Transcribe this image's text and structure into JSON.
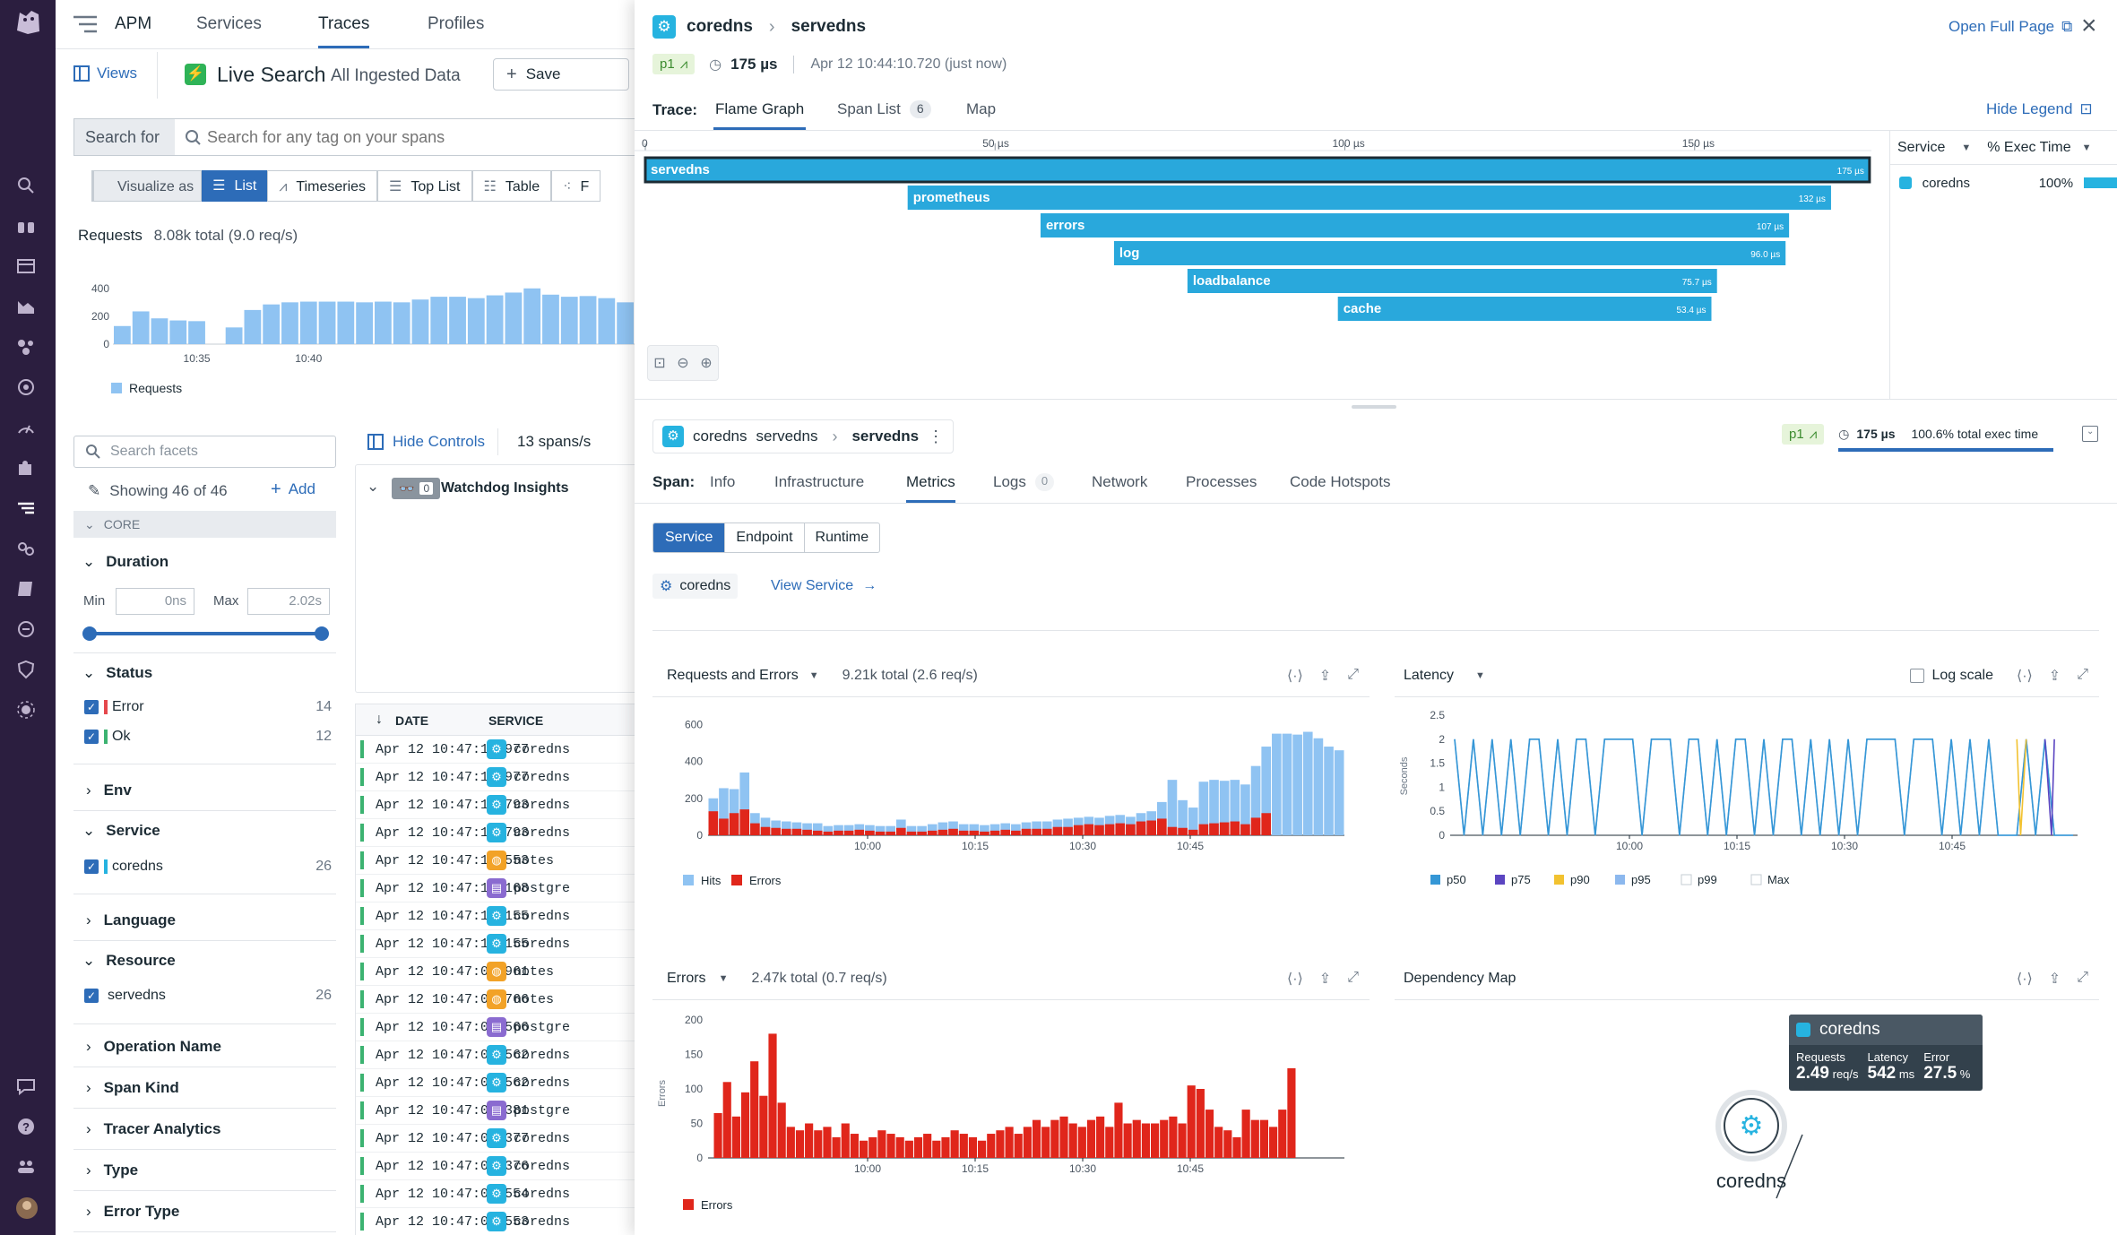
{
  "topnav": {
    "product": "APM",
    "tabs": [
      "Services",
      "Traces",
      "Profiles"
    ]
  },
  "toolbar": {
    "views": "Views",
    "live_search": "Live Search",
    "scope": "All Ingested Data",
    "save": "Save"
  },
  "search": {
    "prefix": "Search for",
    "placeholder": "Search for any tag on your spans"
  },
  "visualize": {
    "label": "Visualize as",
    "options": [
      "List",
      "Timeseries",
      "Top List",
      "Table",
      "F"
    ]
  },
  "requests": {
    "label": "Requests",
    "total": "8.08k total (9.0 req/s)",
    "yticks": [
      "400",
      "200",
      "0"
    ],
    "xticks": [
      "10:35",
      "10:40"
    ],
    "legend": "Requests"
  },
  "facets": {
    "search_placeholder": "Search facets",
    "showing": "Showing 46 of 46",
    "add": "Add",
    "core": "CORE",
    "duration": {
      "title": "Duration",
      "min_label": "Min",
      "min": "0ns",
      "max_label": "Max",
      "max": "2.02s"
    },
    "status": {
      "title": "Status",
      "items": [
        {
          "label": "Error",
          "count": "14",
          "color": "#e5484d"
        },
        {
          "label": "Ok",
          "count": "12",
          "color": "#3cb371"
        }
      ]
    },
    "env": "Env",
    "service": {
      "title": "Service",
      "item": "coredns",
      "count": "26"
    },
    "language": "Language",
    "resource": {
      "title": "Resource",
      "item": "servedns",
      "count": "26"
    },
    "collapsed": [
      "Operation Name",
      "Span Kind",
      "Tracer Analytics",
      "Type",
      "Error Type"
    ]
  },
  "controls": {
    "hide": "Hide Controls",
    "rate": "13 spans/s"
  },
  "watchdog": {
    "title": "Watchdog Insights",
    "count": "0"
  },
  "table": {
    "headers": [
      "DATE",
      "SERVICE"
    ],
    "rows": [
      {
        "date": "Apr 12 10:47:10.977",
        "service": "coredns",
        "kind": "coredns"
      },
      {
        "date": "Apr 12 10:47:10.977",
        "service": "coredns",
        "kind": "coredns"
      },
      {
        "date": "Apr 12 10:47:10.793",
        "service": "coredns",
        "kind": "coredns"
      },
      {
        "date": "Apr 12 10:47:10.793",
        "service": "coredns",
        "kind": "coredns"
      },
      {
        "date": "Apr 12 10:47:10.553",
        "service": "notes",
        "kind": "notes"
      },
      {
        "date": "Apr 12 10:47:10.168",
        "service": "postgre",
        "kind": "postgres"
      },
      {
        "date": "Apr 12 10:47:10.155",
        "service": "coredns",
        "kind": "coredns"
      },
      {
        "date": "Apr 12 10:47:10.155",
        "service": "coredns",
        "kind": "coredns"
      },
      {
        "date": "Apr 12 10:47:09.961",
        "service": "notes",
        "kind": "notes"
      },
      {
        "date": "Apr 12 10:47:09.766",
        "service": "notes",
        "kind": "notes"
      },
      {
        "date": "Apr 12 10:47:09.566",
        "service": "postgre",
        "kind": "postgres"
      },
      {
        "date": "Apr 12 10:47:09.562",
        "service": "coredns",
        "kind": "coredns"
      },
      {
        "date": "Apr 12 10:47:09.562",
        "service": "coredns",
        "kind": "coredns"
      },
      {
        "date": "Apr 12 10:47:09.381",
        "service": "postgre",
        "kind": "postgres"
      },
      {
        "date": "Apr 12 10:47:09.377",
        "service": "coredns",
        "kind": "coredns"
      },
      {
        "date": "Apr 12 10:47:09.376",
        "service": "coredns",
        "kind": "coredns"
      },
      {
        "date": "Apr 12 10:47:08.554",
        "service": "coredns",
        "kind": "coredns"
      },
      {
        "date": "Apr 12 10:47:08.553",
        "service": "coredns",
        "kind": "coredns"
      }
    ]
  },
  "trace": {
    "service": "coredns",
    "operation": "servedns",
    "priority": "p1",
    "duration": "175 µs",
    "timestamp": "Apr 12 10:44:10.720 (just now)",
    "open_full": "Open Full Page",
    "label": "Trace:",
    "tabs": [
      "Flame Graph",
      "Span List",
      "Map"
    ],
    "span_count": "6",
    "hide_legend": "Hide Legend",
    "axis": [
      "0",
      "50 µs",
      "100 µs",
      "150 µs"
    ],
    "legend": {
      "col_service": "Service",
      "col_exec": "% Exec Time",
      "service": "coredns",
      "pct": "100%"
    }
  },
  "flame": [
    {
      "name": "servedns",
      "dur": "175 µs",
      "start": 0,
      "end": 175
    },
    {
      "name": "prometheus",
      "dur": "132 µs",
      "start": 37.5,
      "end": 169.5
    },
    {
      "name": "errors",
      "dur": "107 µs",
      "start": 56.5,
      "end": 163.5
    },
    {
      "name": "log",
      "dur": "96.0 µs",
      "start": 67,
      "end": 163
    },
    {
      "name": "loadbalance",
      "dur": "75.7 µs",
      "start": 77.5,
      "end": 153.2
    },
    {
      "name": "cache",
      "dur": "53.4 µs",
      "start": 99,
      "end": 152.4
    }
  ],
  "span": {
    "service": "coredns",
    "resource": "servedns",
    "operation": "servedns",
    "priority": "p1",
    "duration": "175 µs",
    "exec": "100.6% total exec time",
    "label": "Span:",
    "tabs": [
      "Info",
      "Infrastructure",
      "Metrics",
      "Logs",
      "Network",
      "Processes",
      "Code Hotspots"
    ],
    "logs_count": "0",
    "subtabs": [
      "Service",
      "Endpoint",
      "Runtime"
    ],
    "service_chip": "coredns",
    "view_service": "View Service"
  },
  "panels": {
    "req_errors": {
      "title": "Requests and Errors",
      "total": "9.21k total (2.6 req/s)"
    },
    "latency": {
      "title": "Latency",
      "log_scale": "Log scale"
    },
    "errors": {
      "title": "Errors",
      "total": "2.47k total (0.7 req/s)"
    },
    "depmap": {
      "title": "Dependency Map",
      "node": "coredns",
      "requests_label": "Requests",
      "requests": "2.49",
      "requests_unit": "req/s",
      "latency_label": "Latency",
      "latency": "542",
      "latency_unit": "ms",
      "error_label": "Error",
      "error": "27.5",
      "error_unit": "%"
    }
  },
  "chart_data": [
    {
      "type": "bar",
      "title": "Requests",
      "ylim": [
        0,
        450
      ],
      "x_ticks": [
        "10:35",
        "10:40"
      ],
      "series": [
        {
          "name": "Requests",
          "color": "#8fc3f2",
          "values": [
            130,
            235,
            185,
            170,
            165,
            0,
            120,
            245,
            285,
            300,
            305,
            305,
            305,
            300,
            305,
            300,
            320,
            340,
            340,
            330,
            350,
            370,
            400,
            355,
            340,
            345,
            330,
            300
          ]
        }
      ]
    },
    {
      "type": "bar",
      "title": "Requests and Errors",
      "total": "9.21k total (2.6 req/s)",
      "ylim": [
        0,
        650
      ],
      "y_ticks": [
        0,
        200,
        400,
        600
      ],
      "x_ticks": [
        "10:00",
        "10:15",
        "10:30",
        "10:45"
      ],
      "series": [
        {
          "name": "Hits",
          "color": "#8fc3f2",
          "values": [
            200,
            255,
            250,
            340,
            120,
            95,
            80,
            75,
            70,
            65,
            65,
            50,
            55,
            55,
            60,
            55,
            50,
            50,
            85,
            50,
            50,
            60,
            70,
            75,
            60,
            60,
            55,
            60,
            65,
            60,
            70,
            75,
            75,
            85,
            90,
            95,
            100,
            95,
            105,
            110,
            100,
            120,
            130,
            180,
            300,
            190,
            150,
            290,
            300,
            295,
            300,
            275,
            375,
            480,
            550,
            550,
            545,
            560,
            525,
            480,
            460
          ]
        },
        {
          "name": "Errors",
          "color": "#e0261b",
          "values": [
            130,
            90,
            120,
            140,
            65,
            45,
            40,
            35,
            35,
            30,
            25,
            20,
            25,
            25,
            30,
            25,
            20,
            20,
            40,
            20,
            20,
            25,
            30,
            35,
            25,
            25,
            20,
            25,
            30,
            25,
            35,
            35,
            35,
            45,
            45,
            55,
            60,
            55,
            60,
            65,
            60,
            75,
            80,
            90,
            45,
            40,
            30,
            60,
            65,
            70,
            75,
            60,
            95,
            120,
            0,
            0,
            0,
            0,
            0,
            0,
            0
          ]
        }
      ]
    },
    {
      "type": "line",
      "title": "Latency",
      "ylabel": "Seconds",
      "ylim": [
        0,
        2.5
      ],
      "y_ticks": [
        0,
        0.5,
        1,
        1.5,
        2,
        2.5
      ],
      "x_ticks": [
        "10:00",
        "10:15",
        "10:30",
        "10:45"
      ],
      "series": [
        {
          "name": "p50",
          "color": "#3597d6"
        },
        {
          "name": "p75",
          "color": "#5b45c1"
        },
        {
          "name": "p90",
          "color": "#f2c230"
        },
        {
          "name": "p95",
          "color": "#8cb8ee"
        },
        {
          "name": "p99",
          "color": "#cccccc"
        },
        {
          "name": "Max",
          "color": "#cccccc"
        }
      ],
      "p95": [
        2,
        0,
        2,
        0,
        2,
        0,
        2,
        0,
        2,
        2,
        0,
        2,
        0,
        2,
        2,
        0,
        2,
        2,
        2,
        2,
        0,
        2,
        2,
        2,
        0,
        2,
        2,
        0,
        2,
        0,
        2,
        2,
        0,
        2,
        0,
        2,
        2,
        0,
        2,
        0,
        2,
        0,
        2,
        0,
        2,
        2,
        2,
        2,
        0,
        2,
        2,
        2,
        0,
        2,
        0,
        2,
        0,
        2,
        0,
        0,
        0,
        2,
        0,
        2,
        0,
        0,
        0
      ]
    },
    {
      "type": "bar",
      "title": "Errors",
      "ylabel": "Errors",
      "total": "2.47k total (0.7 req/s)",
      "ylim": [
        0,
        200
      ],
      "y_ticks": [
        0,
        50,
        100,
        150,
        200
      ],
      "x_ticks": [
        "10:00",
        "10:15",
        "10:30",
        "10:45"
      ],
      "series": [
        {
          "name": "Errors",
          "color": "#e0261b",
          "values": [
            65,
            110,
            60,
            95,
            140,
            90,
            180,
            80,
            45,
            40,
            50,
            40,
            45,
            30,
            50,
            35,
            25,
            30,
            40,
            35,
            30,
            25,
            30,
            35,
            25,
            30,
            40,
            35,
            30,
            25,
            35,
            40,
            45,
            35,
            45,
            55,
            45,
            55,
            60,
            50,
            45,
            55,
            60,
            45,
            80,
            50,
            55,
            50,
            50,
            55,
            60,
            50,
            105,
            100,
            70,
            45,
            40,
            30,
            70,
            55,
            55,
            45,
            70,
            130
          ]
        }
      ]
    }
  ]
}
